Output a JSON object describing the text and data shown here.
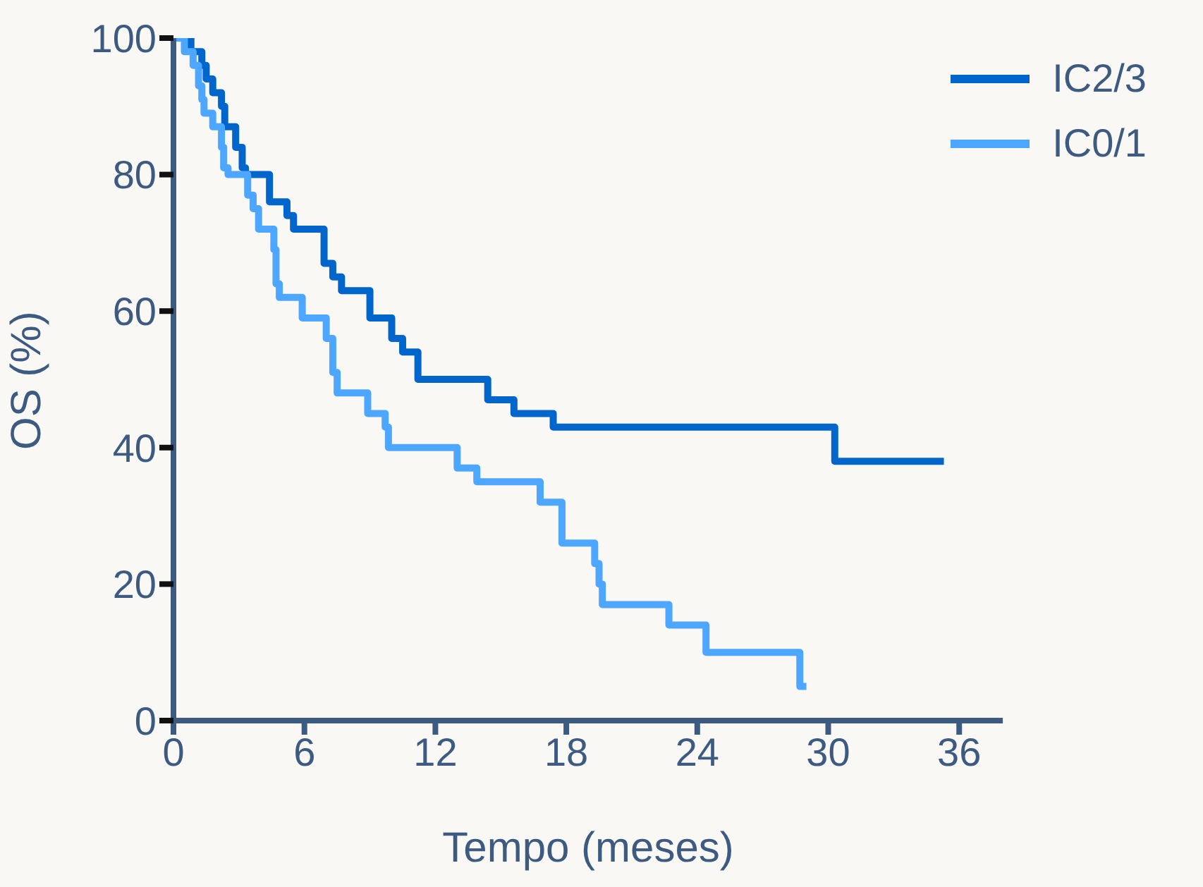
{
  "chart_data": {
    "type": "step",
    "xlabel": "Tempo (meses)",
    "ylabel": "OS (%)",
    "xlim": [
      0,
      38
    ],
    "xticks": [
      0,
      6,
      12,
      18,
      24,
      30,
      36
    ],
    "ylim": [
      0,
      100
    ],
    "yticks": [
      0,
      20,
      40,
      60,
      80,
      100
    ],
    "grid": false,
    "legend": "top right",
    "marker": "none",
    "line_style": "solid",
    "series": [
      {
        "name": "IC2/3",
        "color": "#0066cc",
        "x": [
          0,
          0.8,
          1.3,
          1.5,
          1.8,
          2.2,
          2.35,
          2.85,
          3.15,
          3.3,
          4.4,
          5.2,
          5.5,
          6.9,
          7.3,
          7.7,
          9.0,
          10.0,
          10.5,
          11.2,
          14.4,
          15.6,
          17.4,
          30.3,
          35.3
        ],
        "values": [
          100,
          98,
          96,
          94,
          92,
          90,
          87,
          84,
          81,
          80,
          76,
          74,
          72,
          67,
          65,
          63,
          59,
          56,
          54,
          50,
          47,
          45,
          43,
          38,
          38
        ]
      },
      {
        "name": "IC0/1",
        "color": "#4da6ff",
        "x": [
          0,
          0.5,
          0.9,
          1.15,
          1.3,
          1.4,
          1.8,
          2.2,
          2.3,
          2.5,
          3.4,
          3.65,
          3.9,
          4.6,
          4.7,
          4.85,
          5.9,
          7.0,
          7.3,
          7.5,
          8.9,
          9.7,
          9.85,
          13.0,
          13.9,
          16.8,
          17.8,
          19.3,
          19.5,
          19.65,
          22.7,
          24.4,
          28.7,
          29.0
        ],
        "values": [
          100,
          98,
          96,
          93,
          91,
          89,
          87,
          84,
          81,
          80,
          77,
          75,
          72,
          69,
          64,
          62,
          59,
          56,
          51,
          48,
          45,
          43,
          40,
          37,
          35,
          32,
          26,
          23,
          20,
          17,
          14,
          10,
          5,
          5
        ]
      }
    ]
  }
}
